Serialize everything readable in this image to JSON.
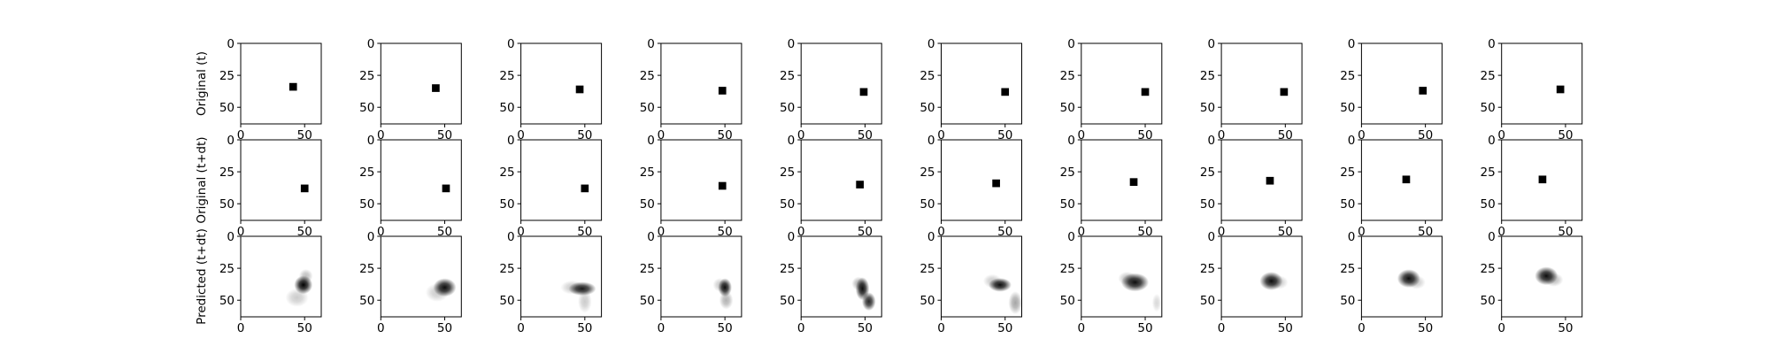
{
  "chart_data": {
    "type": "heatmap",
    "rows": [
      {
        "name": "Original (t)",
        "kind": "square",
        "panels": [
          {
            "x": 41,
            "y": 34
          },
          {
            "x": 43,
            "y": 35
          },
          {
            "x": 46,
            "y": 36
          },
          {
            "x": 48,
            "y": 37
          },
          {
            "x": 49,
            "y": 38
          },
          {
            "x": 50,
            "y": 38
          },
          {
            "x": 50,
            "y": 38
          },
          {
            "x": 49,
            "y": 38
          },
          {
            "x": 48,
            "y": 37
          },
          {
            "x": 46,
            "y": 36
          }
        ]
      },
      {
        "name": "Original (t+dt)",
        "kind": "square",
        "panels": [
          {
            "x": 50,
            "y": 38
          },
          {
            "x": 51,
            "y": 38
          },
          {
            "x": 50,
            "y": 38
          },
          {
            "x": 48,
            "y": 36
          },
          {
            "x": 46,
            "y": 35
          },
          {
            "x": 43,
            "y": 34
          },
          {
            "x": 41,
            "y": 33
          },
          {
            "x": 38,
            "y": 32
          },
          {
            "x": 35,
            "y": 31
          },
          {
            "x": 32,
            "y": 31
          }
        ]
      },
      {
        "name": "Predicted (t+dt)",
        "kind": "blob",
        "panels": [
          {
            "blobs": [
              {
                "x": 49,
                "y": 38,
                "rx": 4,
                "ry": 4,
                "intensity": 1.0
              },
              {
                "x": 44,
                "y": 48,
                "rx": 5,
                "ry": 4,
                "intensity": 0.2
              },
              {
                "x": 51,
                "y": 31,
                "rx": 3,
                "ry": 3,
                "intensity": 0.25
              }
            ]
          },
          {
            "blobs": [
              {
                "x": 50,
                "y": 40,
                "rx": 5,
                "ry": 4,
                "intensity": 0.95
              },
              {
                "x": 44,
                "y": 44,
                "rx": 5,
                "ry": 4,
                "intensity": 0.2
              }
            ]
          },
          {
            "blobs": [
              {
                "x": 48,
                "y": 41,
                "rx": 6,
                "ry": 3,
                "intensity": 0.9
              },
              {
                "x": 40,
                "y": 40,
                "rx": 5,
                "ry": 3,
                "intensity": 0.2
              },
              {
                "x": 50,
                "y": 51,
                "rx": 3,
                "ry": 5,
                "intensity": 0.2
              }
            ]
          },
          {
            "blobs": [
              {
                "x": 50,
                "y": 40,
                "rx": 3,
                "ry": 4,
                "intensity": 0.95
              },
              {
                "x": 51,
                "y": 50,
                "rx": 3,
                "ry": 4,
                "intensity": 0.3
              },
              {
                "x": 46,
                "y": 38,
                "rx": 3,
                "ry": 3,
                "intensity": 0.2
              }
            ]
          },
          {
            "blobs": [
              {
                "x": 48,
                "y": 41,
                "rx": 3,
                "ry": 5,
                "intensity": 0.95
              },
              {
                "x": 53,
                "y": 51,
                "rx": 3,
                "ry": 4,
                "intensity": 0.85
              },
              {
                "x": 45,
                "y": 37,
                "rx": 3,
                "ry": 3,
                "intensity": 0.3
              }
            ]
          },
          {
            "blobs": [
              {
                "x": 46,
                "y": 38,
                "rx": 5,
                "ry": 3,
                "intensity": 0.95
              },
              {
                "x": 40,
                "y": 35,
                "rx": 4,
                "ry": 3,
                "intensity": 0.2
              },
              {
                "x": 58,
                "y": 52,
                "rx": 3,
                "ry": 5,
                "intensity": 0.35
              }
            ]
          },
          {
            "blobs": [
              {
                "x": 42,
                "y": 36,
                "rx": 6,
                "ry": 4,
                "intensity": 0.95
              },
              {
                "x": 36,
                "y": 33,
                "rx": 4,
                "ry": 3,
                "intensity": 0.25
              },
              {
                "x": 59,
                "y": 52,
                "rx": 2,
                "ry": 4,
                "intensity": 0.15
              }
            ]
          },
          {
            "blobs": [
              {
                "x": 39,
                "y": 35,
                "rx": 5,
                "ry": 4,
                "intensity": 0.95
              },
              {
                "x": 45,
                "y": 36,
                "rx": 4,
                "ry": 3,
                "intensity": 0.2
              }
            ]
          },
          {
            "blobs": [
              {
                "x": 37,
                "y": 33,
                "rx": 5,
                "ry": 4,
                "intensity": 0.95
              },
              {
                "x": 43,
                "y": 36,
                "rx": 4,
                "ry": 3,
                "intensity": 0.2
              }
            ]
          },
          {
            "blobs": [
              {
                "x": 35,
                "y": 31,
                "rx": 5,
                "ry": 4,
                "intensity": 0.95
              },
              {
                "x": 41,
                "y": 34,
                "rx": 4,
                "ry": 3,
                "intensity": 0.25
              }
            ]
          }
        ]
      }
    ],
    "square_size": 6,
    "xlim": [
      0,
      63
    ],
    "ylim": [
      63,
      0
    ],
    "xticks": [
      "0",
      "50"
    ],
    "yticks": [
      "0",
      "25",
      "50"
    ],
    "colormap": "gray_r",
    "grid": false
  }
}
